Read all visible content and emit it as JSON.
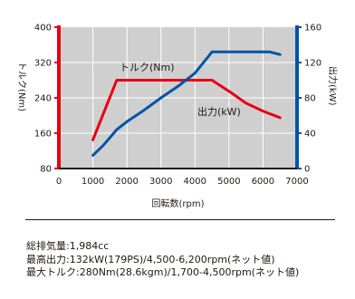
{
  "chart_data": {
    "type": "line",
    "x": {
      "label": "回転数(rpm)",
      "min": 0,
      "max": 7000,
      "ticks": [
        0,
        1000,
        2000,
        3000,
        4000,
        5000,
        6000,
        7000
      ]
    },
    "y_left": {
      "label": "トルク(Nm)",
      "min": 80,
      "max": 400,
      "ticks": [
        80,
        160,
        240,
        320,
        400
      ],
      "color": "#e60012"
    },
    "y_right": {
      "label": "出力(kW)",
      "min": 0,
      "max": 160,
      "ticks": [
        0,
        40,
        80,
        120,
        160
      ],
      "color": "#0054a6"
    },
    "grid": true,
    "series": [
      {
        "name": "トルク(Nm)",
        "axis": "left",
        "color": "#e60012",
        "x": [
          1000,
          1700,
          4500,
          5000,
          5500,
          6000,
          6500
        ],
        "y": [
          145,
          280,
          280,
          255,
          228,
          210,
          195
        ]
      },
      {
        "name": "出力(kW)",
        "axis": "right",
        "color": "#0054a6",
        "x": [
          1000,
          1300,
          1700,
          2000,
          2500,
          3000,
          3500,
          4000,
          4500,
          5000,
          5500,
          6000,
          6200,
          6500
        ],
        "y": [
          15,
          26,
          44,
          53,
          66,
          80,
          93,
          108,
          132,
          132,
          132,
          132,
          132,
          129
        ]
      }
    ]
  },
  "specs": {
    "line1": "総排気量:1,984cc",
    "line2": "最高出力:132kW(179PS)/4,500-6,200rpm(ネット値)",
    "line3": "最大トルク:280Nm(28.6kgm)/1,700-4,500rpm(ネット値)"
  }
}
